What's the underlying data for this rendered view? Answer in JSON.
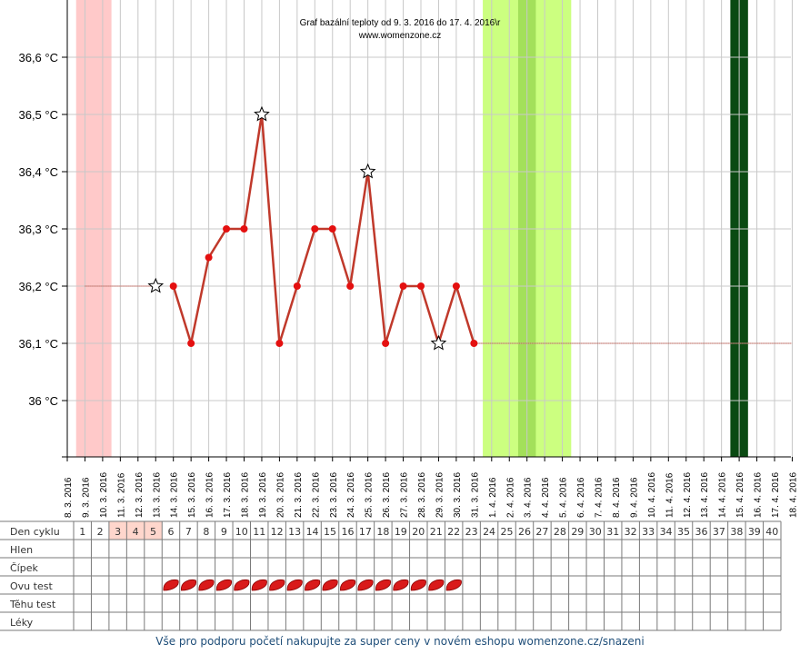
{
  "chart_data": {
    "type": "line",
    "title": "Graf bazální teploty od 9. 3. 2016 do 17. 4. 2016\\r",
    "subtitle": "www.womenzone.cz",
    "x": [
      "8. 3. 2016",
      "9. 3. 2016",
      "10. 3. 2016",
      "11. 3. 2016",
      "12. 3. 2016",
      "13. 3. 2016",
      "14. 3. 2016",
      "15. 3. 2016",
      "16. 3. 2016",
      "17. 3. 2016",
      "18. 3. 2016",
      "19. 3. 2016",
      "20. 3. 2016",
      "21. 3. 2016",
      "22. 3. 2016",
      "23. 3. 2016",
      "24. 3. 2016",
      "25. 3. 2016",
      "26. 3. 2016",
      "27. 3. 2016",
      "28. 3. 2016",
      "29. 3. 2016",
      "30. 3. 2016",
      "31. 3. 2016",
      "1. 4. 2016",
      "2. 4. 2016",
      "3. 4. 2016",
      "4. 4. 2016",
      "5. 4. 2016",
      "6. 4. 2016",
      "7. 4. 2016",
      "8. 4. 2016",
      "9. 4. 2016",
      "10. 4. 2016",
      "11. 4. 2016",
      "12. 4. 2016",
      "13. 4. 2016",
      "14. 4. 2016",
      "15. 4. 2016",
      "16. 4. 2016",
      "17. 4. 2016",
      "18. 4. 2016"
    ],
    "ylim": [
      35.9,
      36.7
    ],
    "yticks": [
      36.0,
      36.1,
      36.2,
      36.3,
      36.4,
      36.5,
      36.6
    ],
    "ytick_labels": [
      "36 °C",
      "36,1 °C",
      "36,2 °C",
      "36,3 °C",
      "36,4 °C",
      "36,5 °C",
      "36,6 °C"
    ],
    "series": [
      {
        "color": "#c0392b",
        "points": [
          {
            "date": "14. 3. 2016",
            "value": 36.2
          },
          {
            "date": "15. 3. 2016",
            "value": 36.1
          },
          {
            "date": "16. 3. 2016",
            "value": 36.25
          },
          {
            "date": "17. 3. 2016",
            "value": 36.3
          },
          {
            "date": "18. 3. 2016",
            "value": 36.3
          },
          {
            "date": "19. 3. 2016",
            "value": 36.5,
            "marker": "star"
          },
          {
            "date": "20. 3. 2016",
            "value": 36.1
          },
          {
            "date": "21. 3. 2016",
            "value": 36.2
          },
          {
            "date": "22. 3. 2016",
            "value": 36.3
          },
          {
            "date": "23. 3. 2016",
            "value": 36.3
          },
          {
            "date": "24. 3. 2016",
            "value": 36.2
          },
          {
            "date": "25. 3. 2016",
            "value": 36.4,
            "marker": "star"
          },
          {
            "date": "26. 3. 2016",
            "value": 36.1
          },
          {
            "date": "27. 3. 2016",
            "value": 36.2
          },
          {
            "date": "28. 3. 2016",
            "value": 36.2
          },
          {
            "date": "29. 3. 2016",
            "value": 36.1,
            "marker": "star"
          },
          {
            "date": "30. 3. 2016",
            "value": 36.2
          },
          {
            "date": "31. 3. 2016",
            "value": 36.1
          }
        ]
      }
    ],
    "extra_markers": [
      {
        "date": "13. 3. 2016",
        "value": 36.2,
        "marker": "star"
      }
    ],
    "guide_lines": [
      {
        "from": "9. 3. 2016",
        "to": "13. 3. 2016",
        "value": 36.2,
        "style": "dotted"
      },
      {
        "from": "31. 3. 2016",
        "to": "18. 4. 2016",
        "value": 36.1,
        "style": "dotted"
      }
    ],
    "bands": [
      {
        "from": "8.5. 3. 2016",
        "start_day": 1,
        "end_day": 3,
        "color": "#ffc9c9",
        "kind": "menstruation"
      },
      {
        "start_day": 24,
        "end_day": 29,
        "color": "#ccff80",
        "kind": "fertile"
      },
      {
        "start_day": 26,
        "end_day": 27,
        "color": "#a3e05a",
        "kind": "fertile-peak"
      },
      {
        "start_day": 38,
        "end_day": 39,
        "color": "#0a4a12",
        "kind": "marker"
      }
    ],
    "grid": true,
    "colors": {
      "line": "#c0392b",
      "dot": "#e41010",
      "menstruation": "#ffc9c9",
      "fertile": "#ccff80",
      "fertile_peak": "#a3e05a",
      "dark_band": "#0a4a12",
      "grid": "#c8c8c8"
    }
  },
  "table": {
    "rows": [
      {
        "label": "Den cyklu",
        "key": "cycle"
      },
      {
        "label": "Hlen",
        "key": "mucus"
      },
      {
        "label": "Čípek",
        "key": "cervix"
      },
      {
        "label": "Ovu test",
        "key": "ovu"
      },
      {
        "label": "Těhu test",
        "key": "preg"
      },
      {
        "label": "Léky",
        "key": "meds"
      }
    ],
    "cycle_days": [
      "1",
      "2",
      "3",
      "4",
      "5",
      "6",
      "7",
      "8",
      "9",
      "10",
      "11",
      "12",
      "13",
      "14",
      "15",
      "16",
      "17",
      "18",
      "19",
      "20",
      "21",
      "22",
      "23",
      "24",
      "25",
      "26",
      "27",
      "28",
      "29",
      "30",
      "31",
      "32",
      "33",
      "34",
      "35",
      "36",
      "37",
      "38",
      "39",
      "40"
    ],
    "highlighted_days": [
      3,
      4,
      5
    ],
    "ovu_test_days": [
      6,
      7,
      8,
      9,
      10,
      11,
      12,
      13,
      14,
      15,
      16,
      17,
      18,
      19,
      20,
      21,
      22
    ]
  },
  "footer": {
    "text": "Vše pro podporu početí nakupujte za super ceny v novém eshopu womenzone.cz/snazeni"
  }
}
